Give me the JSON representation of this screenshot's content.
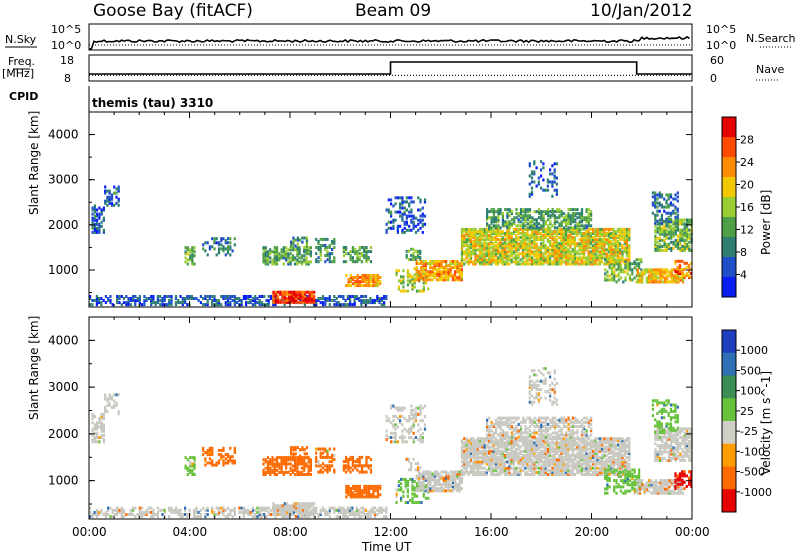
{
  "header": {
    "title": "Goose Bay (fitACF)",
    "beam": "Beam 09",
    "date": "10/Jan/2012"
  },
  "top_panels": {
    "nsky_label": "N.Sky",
    "nsearch_label": "N.Search",
    "noise_ticks_left": [
      "10^5",
      "10^0"
    ],
    "noise_ticks_right": [
      "10^5",
      "10^0"
    ],
    "freq_label": "Freq.",
    "freq_unit": "[MHz]",
    "freq_ticks": [
      "18",
      "8"
    ],
    "nave_label": "Nave",
    "nave_ticks": [
      "60",
      "0"
    ],
    "cpid_label": "CPID",
    "cpid_text": "themis (tau) 3310"
  },
  "power_panel": {
    "ylabel": "Slant Range [km]",
    "yticks": [
      "4000",
      "3000",
      "2000",
      "1000"
    ],
    "colorbar_label": "Power [dB]",
    "colorbar_ticks": [
      "28",
      "24",
      "20",
      "16",
      "12",
      "8",
      "4"
    ],
    "colors": [
      "#0a1ef5",
      "#1f4fc8",
      "#2e7f72",
      "#4ea046",
      "#9acd32",
      "#f2c800",
      "#ff8c00",
      "#ff4a00",
      "#e60000"
    ]
  },
  "velocity_panel": {
    "ylabel": "Slant Range [km]",
    "yticks": [
      "4000",
      "3000",
      "2000",
      "1000"
    ],
    "colorbar_label": "Velocity [m s^-1]",
    "colorbar_ticks": [
      "1000",
      "500",
      "100",
      "25",
      "-25",
      "-100",
      "-500",
      "-1000"
    ],
    "colors": [
      "#1f3fbf",
      "#2f6fb3",
      "#3b8f55",
      "#66c23a",
      "#cfcfc7",
      "#ff9d00",
      "#ff6a00",
      "#e60000"
    ],
    "gray_color": "#c8c8c0"
  },
  "xaxis": {
    "ticks": [
      "00:00",
      "04:00",
      "08:00",
      "12:00",
      "16:00",
      "20:00",
      "00:00"
    ],
    "label": "Time UT"
  },
  "chart_data": {
    "type": "heatmap",
    "title": "Goose Bay (fitACF)",
    "xlabel": "Time UT",
    "ylabel": "Slant Range [km]",
    "xlim": [
      0,
      24
    ],
    "ylim": [
      180,
      4500
    ],
    "frequency_mhz": [
      [
        0,
        10
      ],
      [
        12,
        10
      ],
      [
        12,
        16
      ],
      [
        21.8,
        16
      ],
      [
        21.8,
        10
      ],
      [
        24,
        10
      ]
    ],
    "nave": [
      [
        0,
        8
      ],
      [
        24,
        8
      ]
    ],
    "scatter_regions": [
      {
        "t0": 0.0,
        "t1": 11.8,
        "r0": 200,
        "r1": 420,
        "power": 6,
        "velocity": 25,
        "density": 0.55
      },
      {
        "t0": 7.3,
        "t1": 9.0,
        "r0": 250,
        "r1": 520,
        "power": 28,
        "velocity": -25,
        "density": 0.9
      },
      {
        "t0": 0.1,
        "t1": 0.6,
        "r0": 1800,
        "r1": 2400,
        "power": 6,
        "velocity": -25,
        "density": 0.6
      },
      {
        "t0": 0.6,
        "t1": 1.2,
        "r0": 2400,
        "r1": 2850,
        "power": 6,
        "velocity": -25,
        "density": 0.4
      },
      {
        "t0": 3.8,
        "t1": 4.2,
        "r0": 1100,
        "r1": 1500,
        "power": 14,
        "velocity": 100,
        "density": 0.6
      },
      {
        "t0": 4.5,
        "t1": 5.8,
        "r0": 1300,
        "r1": 1700,
        "power": 8,
        "velocity": -100,
        "density": 0.4
      },
      {
        "t0": 6.9,
        "t1": 8.8,
        "r0": 1100,
        "r1": 1500,
        "power": 12,
        "velocity": -300,
        "density": 0.7
      },
      {
        "t0": 8.0,
        "t1": 8.7,
        "r0": 1450,
        "r1": 1700,
        "power": 10,
        "velocity": -300,
        "density": 0.5
      },
      {
        "t0": 9.0,
        "t1": 9.8,
        "r0": 1150,
        "r1": 1650,
        "power": 10,
        "velocity": -100,
        "density": 0.5
      },
      {
        "t0": 10.1,
        "t1": 11.2,
        "r0": 1150,
        "r1": 1500,
        "power": 12,
        "velocity": -300,
        "density": 0.6
      },
      {
        "t0": 10.2,
        "t1": 11.6,
        "r0": 620,
        "r1": 850,
        "power": 22,
        "velocity": -300,
        "density": 0.8
      },
      {
        "t0": 11.8,
        "t1": 13.4,
        "r0": 1800,
        "r1": 2600,
        "power": 6,
        "velocity": -25,
        "density": 0.35
      },
      {
        "t0": 12.6,
        "t1": 13.2,
        "r0": 1200,
        "r1": 1450,
        "power": 12,
        "velocity": -25,
        "density": 0.5
      },
      {
        "t0": 12.2,
        "t1": 13.5,
        "r0": 500,
        "r1": 1000,
        "power": 16,
        "velocity": 100,
        "density": 0.4
      },
      {
        "t0": 13.0,
        "t1": 14.8,
        "r0": 750,
        "r1": 1200,
        "power": 22,
        "velocity": -25,
        "density": 0.8
      },
      {
        "t0": 14.8,
        "t1": 21.5,
        "r0": 1100,
        "r1": 1900,
        "power": 18,
        "velocity": -25,
        "density": 0.85
      },
      {
        "t0": 15.8,
        "t1": 20.0,
        "r0": 1900,
        "r1": 2350,
        "power": 12,
        "velocity": -25,
        "density": 0.6
      },
      {
        "t0": 17.5,
        "t1": 18.6,
        "r0": 2600,
        "r1": 3400,
        "power": 6,
        "velocity": -25,
        "density": 0.3
      },
      {
        "t0": 20.5,
        "t1": 22.0,
        "r0": 700,
        "r1": 1200,
        "power": 14,
        "velocity": 100,
        "density": 0.5
      },
      {
        "t0": 21.8,
        "t1": 23.6,
        "r0": 700,
        "r1": 1000,
        "power": 20,
        "velocity": -25,
        "density": 0.8
      },
      {
        "t0": 22.5,
        "t1": 24.0,
        "r0": 1400,
        "r1": 2100,
        "power": 14,
        "velocity": -25,
        "density": 0.75
      },
      {
        "t0": 22.4,
        "t1": 23.4,
        "r0": 2000,
        "r1": 2700,
        "power": 8,
        "velocity": 100,
        "density": 0.45
      },
      {
        "t0": 23.3,
        "t1": 24.0,
        "r0": 800,
        "r1": 1200,
        "power": 24,
        "velocity": -500,
        "density": 0.6
      }
    ]
  }
}
